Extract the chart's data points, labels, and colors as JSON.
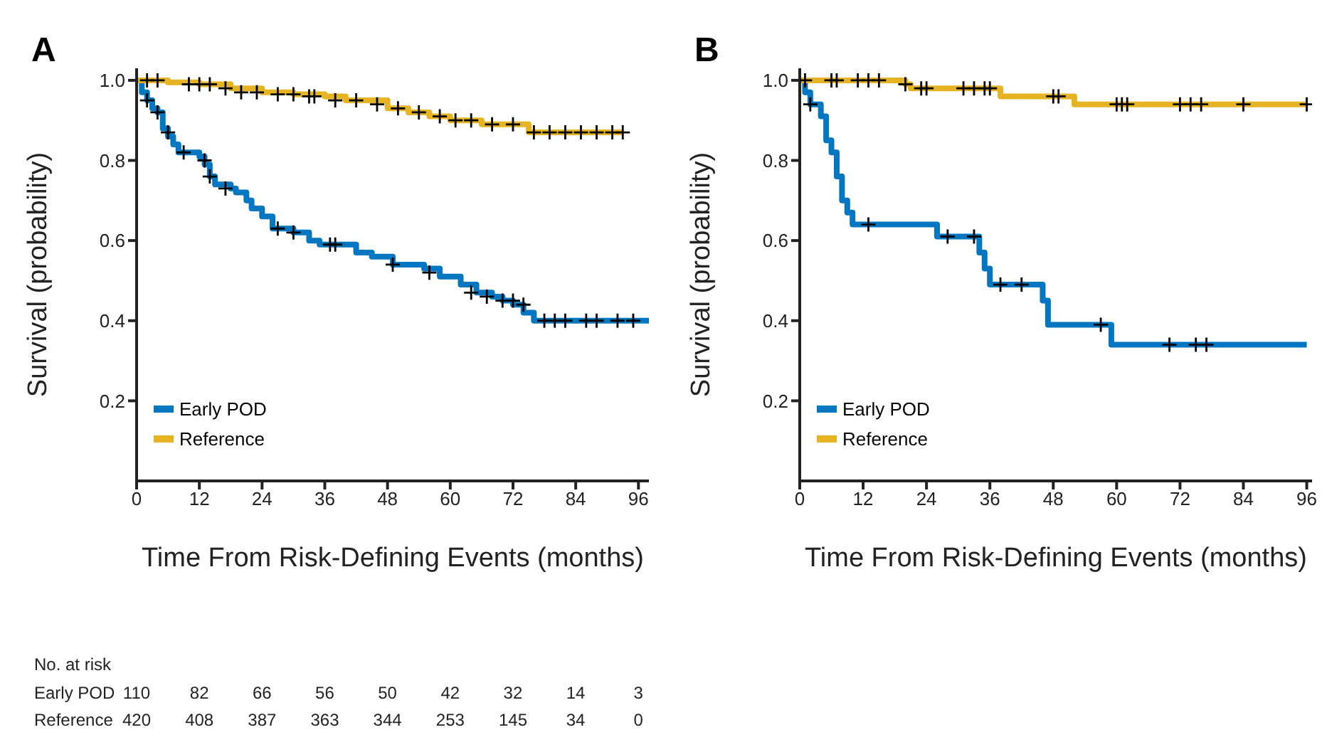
{
  "chart_data": [
    {
      "type": "step",
      "title": "A",
      "xlabel": "Time From Risk-Defining Events (months)",
      "ylabel": "Survival (probability)",
      "xlim": [
        0,
        98
      ],
      "xticks": [
        0,
        12,
        24,
        36,
        48,
        60,
        72,
        84,
        96
      ],
      "ylim": [
        0,
        1.03
      ],
      "yticks": [
        0.2,
        0.4,
        0.6,
        0.8,
        {
          "value": 1,
          "label": "1.0"
        }
      ],
      "legend": "bottom left",
      "series": [
        {
          "name": "Early POD",
          "color": "#0077c0",
          "x": [
            0,
            1,
            2,
            3,
            4,
            5,
            6,
            7,
            8,
            12,
            13,
            14,
            15,
            18,
            19,
            21,
            22,
            24,
            26,
            30,
            33,
            35,
            42,
            45,
            49,
            55,
            58,
            62,
            65,
            68,
            70,
            72,
            74,
            76,
            98
          ],
          "values": [
            1.0,
            0.97,
            0.95,
            0.93,
            0.92,
            0.88,
            0.86,
            0.84,
            0.82,
            0.81,
            0.79,
            0.76,
            0.74,
            0.73,
            0.72,
            0.7,
            0.68,
            0.66,
            0.63,
            0.62,
            0.6,
            0.59,
            0.57,
            0.56,
            0.54,
            0.53,
            0.51,
            0.49,
            0.47,
            0.46,
            0.45,
            0.44,
            0.42,
            0.4,
            0.4
          ]
        },
        {
          "name": "Reference",
          "color": "#e6b422",
          "x": [
            0,
            6,
            12,
            18,
            24,
            30,
            36,
            40,
            48,
            52,
            56,
            60,
            66,
            75,
            93
          ],
          "values": [
            1.0,
            0.995,
            0.99,
            0.98,
            0.97,
            0.965,
            0.96,
            0.95,
            0.93,
            0.92,
            0.91,
            0.9,
            0.89,
            0.87,
            0.87
          ]
        },
        {
          "type": "scatter",
          "color": "#000000",
          "marker": "cross",
          "x": [
            2,
            4,
            6,
            9,
            13,
            14,
            17,
            27,
            30,
            37,
            38,
            49,
            56,
            64,
            67,
            70,
            72,
            74,
            78,
            80,
            82,
            86,
            88,
            92,
            95
          ],
          "values": [
            0.95,
            0.92,
            0.87,
            0.82,
            0.8,
            0.76,
            0.73,
            0.63,
            0.62,
            0.59,
            0.59,
            0.54,
            0.52,
            0.47,
            0.46,
            0.45,
            0.45,
            0.44,
            0.4,
            0.4,
            0.4,
            0.4,
            0.4,
            0.4,
            0.4
          ]
        },
        {
          "type": "scatter",
          "color": "#000000",
          "marker": "cross",
          "x": [
            2,
            4,
            10,
            12,
            14,
            17,
            20,
            23,
            27,
            30,
            33,
            34,
            38,
            42,
            46,
            50,
            54,
            58,
            61,
            64,
            68,
            72,
            76,
            79,
            82,
            85,
            88,
            91,
            93
          ],
          "values": [
            1.0,
            1.0,
            0.99,
            0.99,
            0.99,
            0.98,
            0.97,
            0.97,
            0.965,
            0.965,
            0.96,
            0.96,
            0.95,
            0.95,
            0.94,
            0.93,
            0.92,
            0.91,
            0.9,
            0.9,
            0.89,
            0.89,
            0.87,
            0.87,
            0.87,
            0.87,
            0.87,
            0.87,
            0.87
          ]
        }
      ],
      "annotations": [
        "No. at risk",
        "Early POD",
        "110",
        "82",
        "66",
        "56",
        "50",
        "42",
        "32",
        "14",
        "3",
        "Reference",
        "420",
        "408",
        "387",
        "363",
        "344",
        "253",
        "145",
        "34",
        "0"
      ]
    },
    {
      "type": "step",
      "title": "B",
      "xlabel": "Time From Risk-Defining Events (months)",
      "ylabel": "Survival (probability)",
      "xlim": [
        0,
        97
      ],
      "xticks": [
        0,
        12,
        24,
        36,
        48,
        60,
        72,
        84,
        96
      ],
      "ylim": [
        0,
        1.03
      ],
      "yticks": [
        0.2,
        0.4,
        0.6,
        0.8,
        {
          "value": 1,
          "label": "1.0"
        }
      ],
      "legend": "bottom left",
      "series": [
        {
          "name": "Early POD",
          "color": "#0077c0",
          "x": [
            0,
            1,
            2,
            4,
            5,
            6,
            7,
            8,
            9,
            10,
            26,
            34,
            35,
            36,
            46,
            47,
            59,
            96
          ],
          "values": [
            1.0,
            0.97,
            0.94,
            0.91,
            0.85,
            0.82,
            0.76,
            0.7,
            0.67,
            0.64,
            0.61,
            0.57,
            0.53,
            0.49,
            0.45,
            0.39,
            0.34,
            0.34
          ]
        },
        {
          "name": "Reference",
          "color": "#e6b422",
          "x": [
            0,
            20,
            21,
            38,
            52,
            96
          ],
          "values": [
            1.0,
            0.99,
            0.98,
            0.96,
            0.94,
            0.94
          ]
        },
        {
          "type": "scatter",
          "color": "#000000",
          "marker": "cross",
          "x": [
            2,
            13,
            28,
            33,
            38,
            42,
            57,
            70,
            75,
            77
          ],
          "values": [
            0.94,
            0.64,
            0.61,
            0.61,
            0.49,
            0.49,
            0.39,
            0.34,
            0.34,
            0.34
          ]
        },
        {
          "type": "scatter",
          "color": "#000000",
          "marker": "cross",
          "x": [
            1,
            6,
            7,
            11,
            13,
            15,
            20,
            23,
            24,
            31,
            33,
            35,
            36,
            48,
            49,
            60,
            61,
            62,
            72,
            74,
            76,
            84,
            96
          ],
          "values": [
            1.0,
            1.0,
            1.0,
            1.0,
            1.0,
            1.0,
            0.99,
            0.98,
            0.98,
            0.98,
            0.98,
            0.98,
            0.98,
            0.96,
            0.96,
            0.94,
            0.94,
            0.94,
            0.94,
            0.94,
            0.94,
            0.94,
            0.94
          ]
        }
      ]
    }
  ]
}
